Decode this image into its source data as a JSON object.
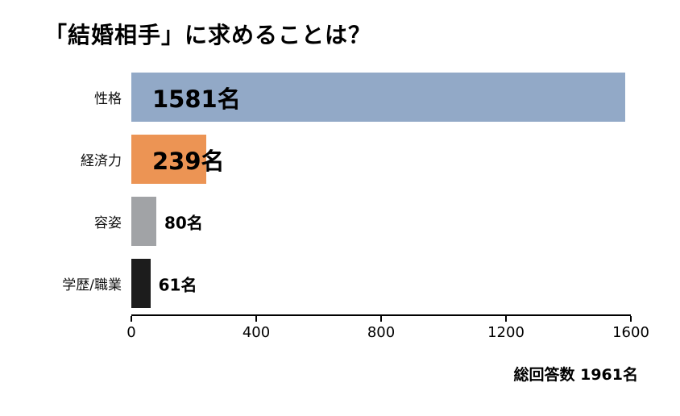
{
  "title": "「結婚相手」に求めることは？",
  "footer": "総回答数 1961名",
  "chart_data": {
    "type": "bar",
    "orientation": "horizontal",
    "title": "「結婚相手」に求めることは？",
    "categories": [
      "性格",
      "経済力",
      "容姿",
      "学歴/職業"
    ],
    "values": [
      1581,
      239,
      80,
      61
    ],
    "value_labels": [
      "1581名",
      "239名",
      "80名",
      "61名"
    ],
    "bar_colors": [
      "#92a9c7",
      "#ec9454",
      "#a1a3a6",
      "#1c1c1c"
    ],
    "xlim": [
      0,
      1600
    ],
    "x_ticks": [
      0,
      400,
      800,
      1200,
      1600
    ],
    "grid": false,
    "legend": "none",
    "annotation": "総回答数 1961名",
    "total_responses": 1961
  }
}
